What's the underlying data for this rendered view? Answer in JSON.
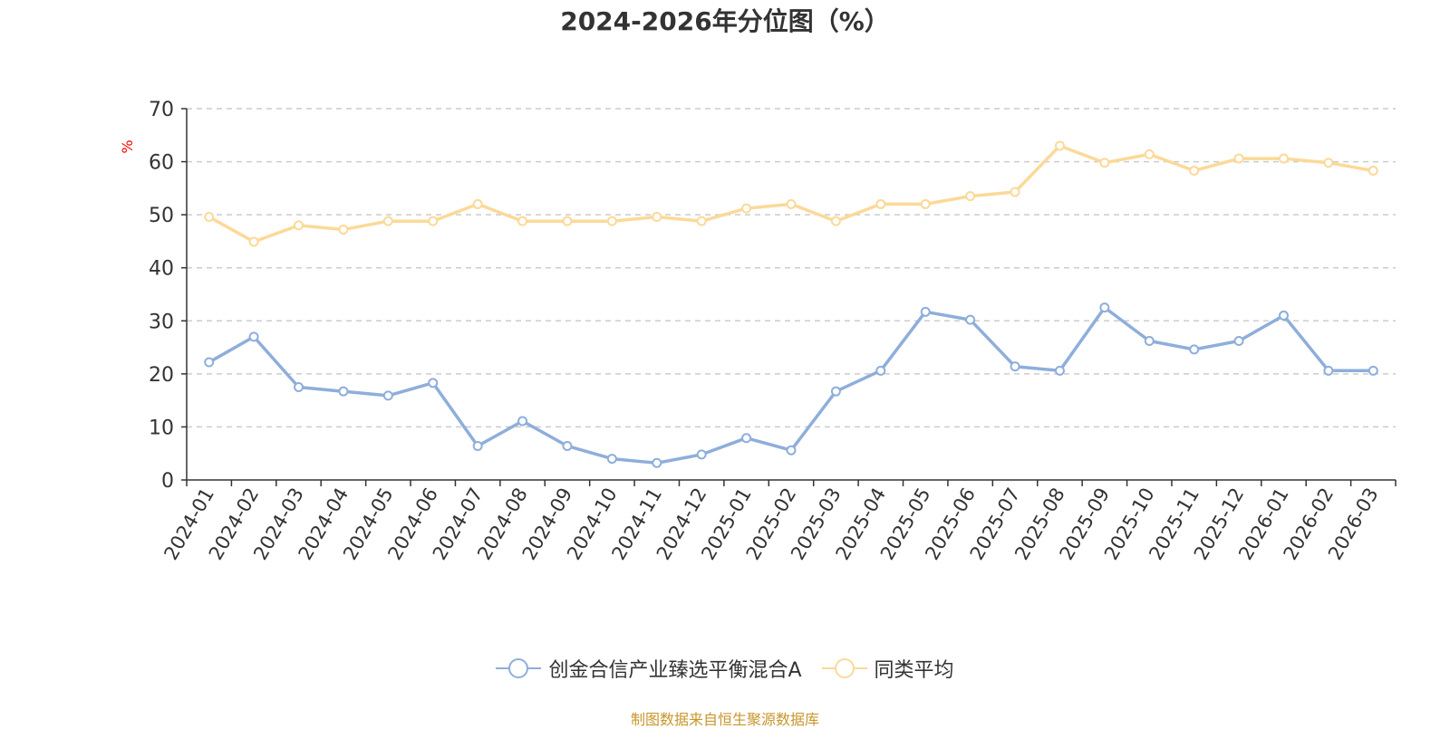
{
  "title": "2024-2026年分位图（%）",
  "source_note": "制图数据来自恒生聚源数据库",
  "colors": {
    "series1": "#8eaedb",
    "series2": "#fcd998",
    "axis": "#333333",
    "grid": "#cccccc",
    "ylabel": "#ff0000",
    "source": "#c8962a"
  },
  "chart_data": {
    "type": "line",
    "title": "2024-2026年分位图（%）",
    "xlabel": "",
    "ylabel": "%",
    "ylim": [
      0,
      70
    ],
    "yticks": [
      0,
      10,
      20,
      30,
      40,
      50,
      60,
      70
    ],
    "grid": true,
    "legend_position": "bottom",
    "categories": [
      "2024-01",
      "2024-02",
      "2024-03",
      "2024-04",
      "2024-05",
      "2024-06",
      "2024-07",
      "2024-08",
      "2024-09",
      "2024-10",
      "2024-11",
      "2024-12",
      "2025-01",
      "2025-02",
      "2025-03",
      "2025-04",
      "2025-05",
      "2025-06",
      "2025-07",
      "2025-08",
      "2025-09",
      "2025-10",
      "2025-11",
      "2025-12",
      "2026-01",
      "2026-02",
      "2026-03"
    ],
    "series": [
      {
        "name": "创金合信产业臻选平衡混合A",
        "color": "#8eaedb",
        "values": [
          22.2,
          27.0,
          17.5,
          16.7,
          15.9,
          18.3,
          6.4,
          11.1,
          6.4,
          4.0,
          3.2,
          4.8,
          7.9,
          5.6,
          16.7,
          20.6,
          31.7,
          30.2,
          21.4,
          20.6,
          32.5,
          26.2,
          24.6,
          26.2,
          31.0,
          20.6,
          20.6
        ]
      },
      {
        "name": "同类平均",
        "color": "#fcd998",
        "values": [
          49.6,
          44.9,
          48.0,
          47.2,
          48.8,
          48.8,
          52.0,
          48.8,
          48.8,
          48.8,
          49.6,
          48.8,
          51.2,
          52.0,
          48.8,
          52.0,
          52.0,
          53.5,
          54.3,
          63.0,
          59.8,
          61.4,
          58.3,
          60.6,
          60.6,
          59.8,
          58.3
        ]
      }
    ]
  }
}
